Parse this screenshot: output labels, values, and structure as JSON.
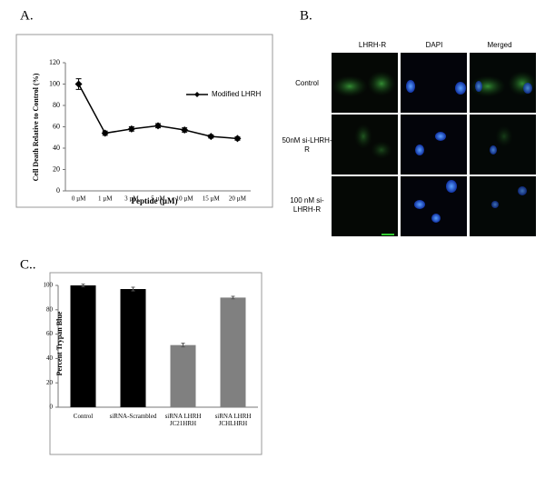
{
  "chart_data": [
    {
      "type": "line",
      "panel_label": "A.",
      "xlabel": "Peptide  (µM)",
      "ylabel": "Cell Death Relative to Control (%)",
      "categories": [
        "0 µM",
        "1 µM",
        "3 µM",
        "5 µM",
        "10 µM",
        "15 µM",
        "20 µM"
      ],
      "series": [
        {
          "name": "Modified LHRH",
          "color": "#000000",
          "values": [
            100,
            54,
            58,
            61,
            57,
            51,
            49
          ],
          "errors": [
            5,
            2,
            2,
            2,
            2,
            1.5,
            1.5
          ]
        }
      ],
      "ylim": [
        0,
        120
      ],
      "yticks": [
        0,
        20,
        40,
        60,
        80,
        100,
        120
      ],
      "grid": false,
      "legend": "right"
    },
    {
      "type": "bar",
      "panel_label": "C..",
      "ylabel": "Percent Trypan Blue",
      "categories": [
        "Control",
        "siRNA-Scrambled",
        "siRNA LHRH JC21HRH",
        "siRNA LHRH JCHLHRH"
      ],
      "values": [
        100,
        97,
        51,
        90
      ],
      "errors": [
        1,
        1.5,
        1.5,
        1
      ],
      "colors": [
        "#000000",
        "#000000",
        "#808080",
        "#808080"
      ],
      "ylim": [
        0,
        100
      ],
      "yticks": [
        0,
        20,
        40,
        60,
        80,
        100
      ],
      "grid": false
    }
  ],
  "microscopy": {
    "panel_label": "B.",
    "columns": [
      "LHRH-R",
      "DAPI",
      "Merged"
    ],
    "rows": [
      "Control",
      "50nM si-LHRH-R",
      "100 nM si-LHRH-R"
    ]
  }
}
